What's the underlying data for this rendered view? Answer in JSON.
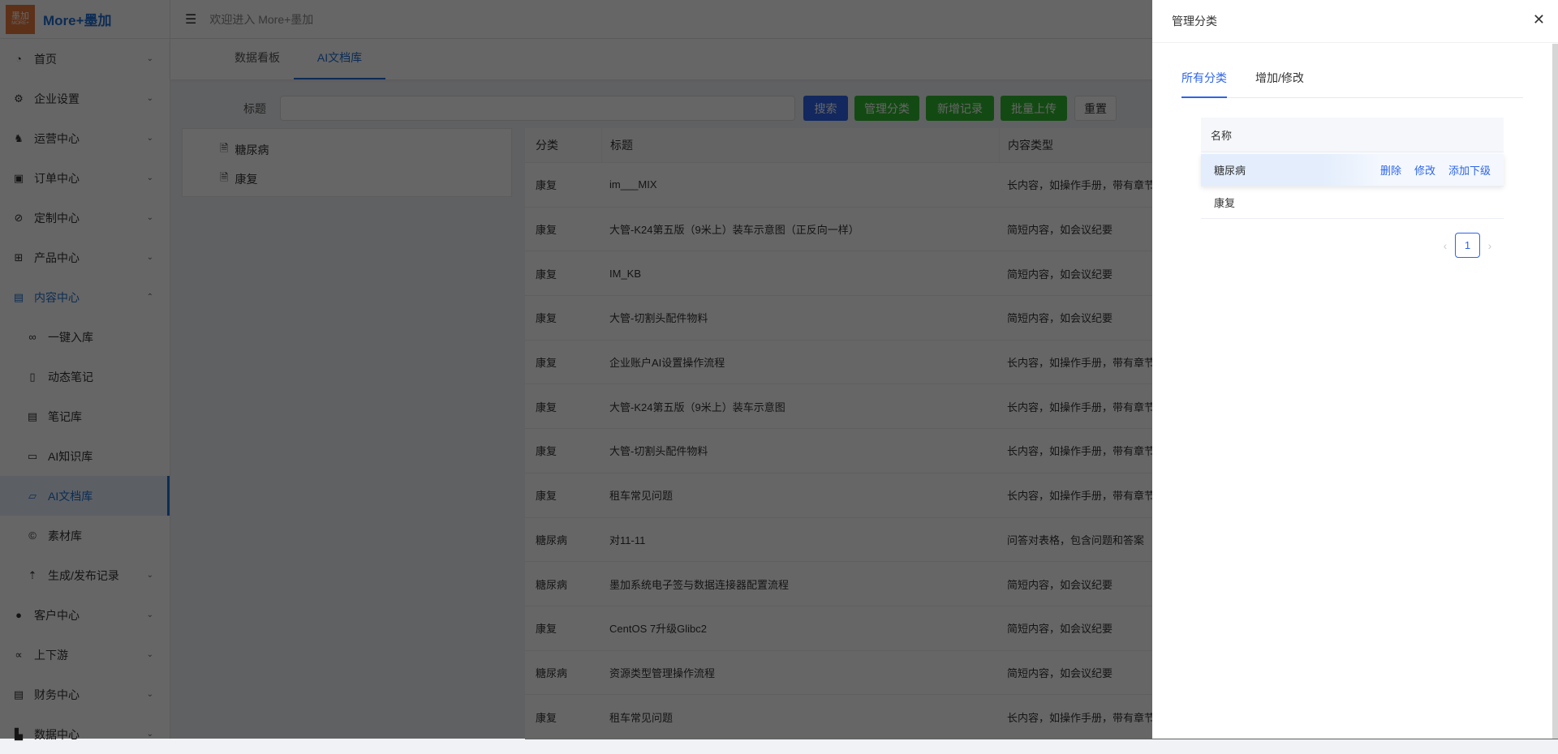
{
  "app": {
    "logo_text": "墨加",
    "logo_sub": "MORE+",
    "brand": "More+墨加",
    "welcome": "欢迎进入 More+墨加"
  },
  "sidebar": {
    "items": [
      {
        "label": "首页",
        "icon": "dashboard-icon",
        "chev": "⌄",
        "level": 0
      },
      {
        "label": "企业设置",
        "icon": "gear-icon",
        "chev": "⌄",
        "level": 0
      },
      {
        "label": "运营中心",
        "icon": "android-icon",
        "chev": "⌄",
        "level": 0
      },
      {
        "label": "订单中心",
        "icon": "order-icon",
        "chev": "⌄",
        "level": 0
      },
      {
        "label": "定制中心",
        "icon": "compass-icon",
        "chev": "⌄",
        "level": 0
      },
      {
        "label": "产品中心",
        "icon": "grid-icon",
        "chev": "⌄",
        "level": 0
      },
      {
        "label": "内容中心",
        "icon": "content-icon",
        "chev": "⌃",
        "level": 0,
        "open": true
      },
      {
        "label": "一键入库",
        "icon": "link-icon",
        "chev": "",
        "level": 1
      },
      {
        "label": "动态笔记",
        "icon": "note-icon",
        "chev": "",
        "level": 1
      },
      {
        "label": "笔记库",
        "icon": "notebook-icon",
        "chev": "",
        "level": 1
      },
      {
        "label": "AI知识库",
        "icon": "knowledge-file-icon",
        "chev": "",
        "level": 1
      },
      {
        "label": "AI文档库",
        "icon": "folder-open-icon",
        "chev": "",
        "level": 1,
        "active": true
      },
      {
        "label": "素材库",
        "icon": "copyright-icon",
        "chev": "",
        "level": 1
      },
      {
        "label": "生成/发布记录",
        "icon": "cloud-upload-icon",
        "chev": "⌄",
        "level": 1
      },
      {
        "label": "客户中心",
        "icon": "wechat-icon",
        "chev": "⌄",
        "level": 0
      },
      {
        "label": "上下游",
        "icon": "chain-icon",
        "chev": "⌄",
        "level": 0
      },
      {
        "label": "财务中心",
        "icon": "ledger-icon",
        "chev": "⌄",
        "level": 0
      },
      {
        "label": "数据中心",
        "icon": "area-chart-icon",
        "chev": "⌄",
        "level": 0
      }
    ]
  },
  "tabs": [
    {
      "label": "数据看板"
    },
    {
      "label": "AI文档库",
      "active": true
    }
  ],
  "search": {
    "label": "标题",
    "value": "",
    "placeholder": ""
  },
  "toolbar": {
    "search": "搜索",
    "manage": "管理分类",
    "add": "新增记录",
    "upload": "批量上传",
    "reset": "重置"
  },
  "tree": [
    {
      "label": "糖尿病"
    },
    {
      "label": "康复"
    }
  ],
  "table": {
    "headers": [
      "分类",
      "标题",
      "内容类型"
    ],
    "rows": [
      [
        "康复",
        "im___MIX",
        "长内容，如操作手册，带有章节、段落等复杂"
      ],
      [
        "康复",
        "大管-K24第五版（9米上）装车示意图（正反向一样）",
        "简短内容，如会议纪要"
      ],
      [
        "康复",
        "IM_KB",
        "简短内容，如会议纪要"
      ],
      [
        "康复",
        "大管-切割头配件物料",
        "简短内容，如会议纪要"
      ],
      [
        "康复",
        "企业账户AI设置操作流程",
        "长内容，如操作手册，带有章节、段落等复杂"
      ],
      [
        "康复",
        "大管-K24第五版（9米上）装车示意图",
        "长内容，如操作手册，带有章节、段落等复杂"
      ],
      [
        "康复",
        "大管-切割头配件物料",
        "长内容，如操作手册，带有章节、段落等复杂"
      ],
      [
        "康复",
        "租车常见问题",
        "长内容，如操作手册，带有章节、段落等复杂"
      ],
      [
        "糖尿病",
        "对11-11",
        "问答对表格，包含问题和答案"
      ],
      [
        "糖尿病",
        "墨加系统电子签与数据连接器配置流程",
        "简短内容，如会议纪要"
      ],
      [
        "康复",
        "CentOS 7升级Glibc2",
        "简短内容，如会议纪要"
      ],
      [
        "糖尿病",
        "资源类型管理操作流程",
        "简短内容，如会议纪要"
      ],
      [
        "康复",
        "租车常见问题",
        "长内容，如操作手册，带有章节、段落等复杂"
      ]
    ]
  },
  "drawer": {
    "title": "管理分类",
    "close": "✕",
    "tabs": [
      {
        "label": "所有分类",
        "active": true
      },
      {
        "label": "增加/修改"
      }
    ],
    "table_header": "名称",
    "rows": [
      {
        "name": "糖尿病",
        "actions": [
          "删除",
          "修改",
          "添加下级"
        ]
      },
      {
        "name": "康复",
        "actions": []
      }
    ],
    "pagination": {
      "prev": "‹",
      "page": "1",
      "next": "›"
    }
  },
  "colors": {
    "accent": "#1f6fd1",
    "primary_button": "#2d64ea",
    "success_button": "#2fb82f",
    "overlay": "rgba(0,0,0,0.6)"
  }
}
